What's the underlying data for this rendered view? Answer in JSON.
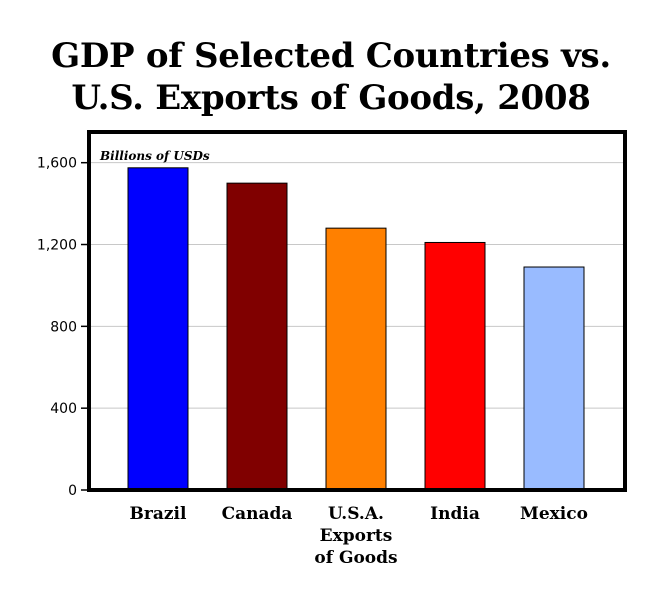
{
  "chart_data": {
    "type": "bar",
    "title": "GDP of Selected Countries vs. U.S. Exports of Goods, 2008",
    "title_lines": [
      "GDP of Selected Countries vs.",
      "U.S. Exports of Goods, 2008"
    ],
    "unit_label": "Billions of USDs",
    "categories": [
      "Brazil",
      "Canada",
      "U.S.A. Exports of Goods",
      "India",
      "Mexico"
    ],
    "category_label_lines": [
      [
        "Brazil"
      ],
      [
        "Canada"
      ],
      [
        "U.S.A.",
        "Exports",
        "of Goods"
      ],
      [
        "India"
      ],
      [
        "Mexico"
      ]
    ],
    "values": [
      1575,
      1500,
      1280,
      1210,
      1090
    ],
    "colors": [
      "#0000ff",
      "#800000",
      "#ff8000",
      "#ff0000",
      "#99bbff"
    ],
    "ylim": [
      0,
      1750
    ],
    "yticks": [
      0,
      400,
      800,
      1200,
      1600
    ],
    "ytick_labels": [
      "0",
      "400",
      "800",
      "1,200",
      "1,600"
    ],
    "grid": true,
    "xlabel": "",
    "ylabel": ""
  }
}
